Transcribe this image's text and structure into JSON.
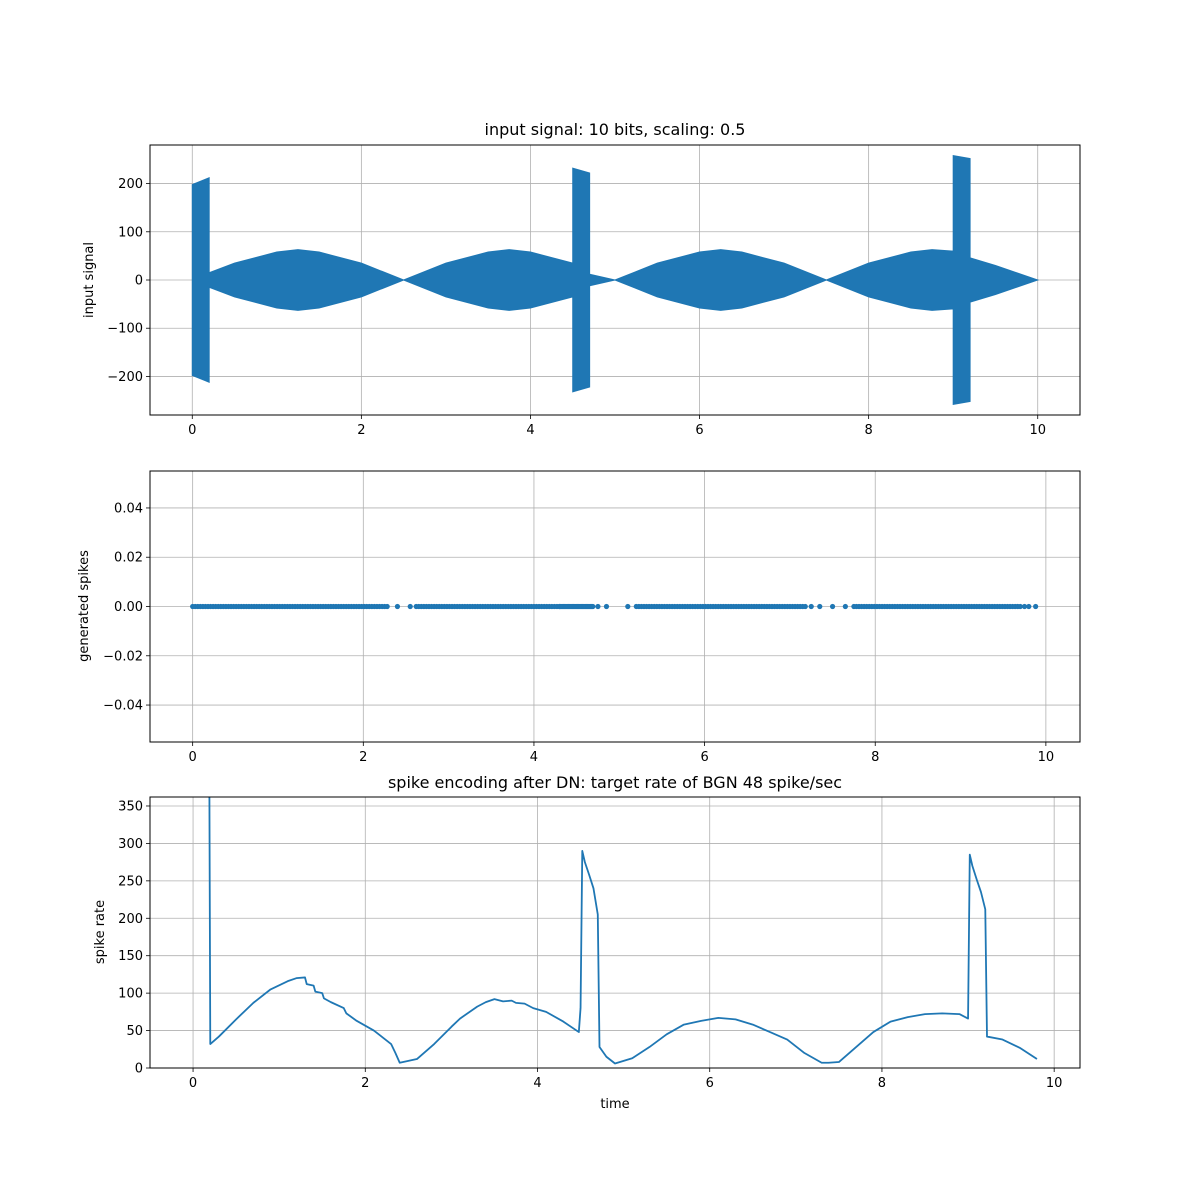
{
  "colors": {
    "series": "#1f77b4",
    "grid": "#b0b0b0",
    "axes": "#000000"
  },
  "chart_data": [
    {
      "type": "area",
      "title": "input signal: 10 bits, scaling: 0.5",
      "xlabel": "",
      "ylabel": "input signal",
      "xlim": [
        -0.5,
        10.5
      ],
      "ylim": [
        -280,
        280
      ],
      "xticks": [
        0,
        2,
        4,
        6,
        8,
        10
      ],
      "xtick_labels": [
        "0",
        "2",
        "4",
        "6",
        "8",
        "10"
      ],
      "yticks": [
        -200,
        -100,
        0,
        100,
        200
      ],
      "ytick_labels": [
        "−200",
        "−100",
        "0",
        "100",
        "200"
      ],
      "grid": true,
      "envelope": {
        "x": [
          0,
          0.2,
          0.2,
          0.5,
          1.0,
          1.25,
          1.5,
          2.0,
          2.5,
          3.0,
          3.5,
          3.75,
          4.0,
          4.5,
          4.5,
          4.7,
          4.7,
          5.0,
          5.5,
          6.0,
          6.25,
          6.5,
          7.0,
          7.5,
          8.0,
          8.5,
          8.75,
          9.0,
          9.0,
          9.2,
          9.2,
          9.5,
          10.0
        ],
        "upper": [
          198,
          212,
          15,
          35,
          58,
          63,
          58,
          35,
          0,
          35,
          58,
          63,
          58,
          35,
          232,
          222,
          12,
          0,
          35,
          58,
          63,
          58,
          35,
          0,
          35,
          58,
          63,
          60,
          258,
          252,
          46,
          30,
          0
        ],
        "lower": [
          -198,
          -212,
          -15,
          -35,
          -58,
          -63,
          -58,
          -35,
          0,
          -35,
          -58,
          -63,
          -58,
          -35,
          -232,
          -222,
          -12,
          0,
          -35,
          -58,
          -63,
          -58,
          -35,
          0,
          -35,
          -58,
          -63,
          -60,
          -258,
          -252,
          -46,
          -30,
          0
        ]
      }
    },
    {
      "type": "scatter",
      "title": "",
      "xlabel": "",
      "ylabel": "generated spikes",
      "xlim": [
        -0.5,
        10.4
      ],
      "ylim": [
        -0.055,
        0.055
      ],
      "xticks": [
        0,
        2,
        4,
        6,
        8,
        10
      ],
      "xtick_labels": [
        "0",
        "2",
        "4",
        "6",
        "8",
        "10"
      ],
      "yticks": [
        -0.04,
        -0.02,
        0.0,
        0.02,
        0.04
      ],
      "ytick_labels": [
        "−0.04",
        "−0.02",
        "0.00",
        "0.02",
        "0.04"
      ],
      "grid": true,
      "y_value": 0.0,
      "spike_bands": [
        {
          "from": 0.0,
          "to": 2.3,
          "step": 0.03
        },
        {
          "from": 2.62,
          "to": 4.3,
          "step": 0.03
        },
        {
          "from": 4.3,
          "to": 4.7,
          "step": 0.015
        },
        {
          "from": 5.2,
          "to": 7.2,
          "step": 0.03
        },
        {
          "from": 7.75,
          "to": 9.7,
          "step": 0.03
        }
      ],
      "spike_x_extra": [
        2.4,
        2.55,
        4.75,
        4.85,
        5.1,
        7.25,
        7.35,
        7.5,
        7.65,
        9.75,
        9.8,
        9.88
      ]
    },
    {
      "type": "line",
      "title": "spike encoding after DN: target rate of BGN 48 spike/sec",
      "xlabel": "time",
      "ylabel": "spike rate",
      "xlim": [
        -0.5,
        10.3
      ],
      "ylim": [
        0,
        362
      ],
      "xticks": [
        0,
        2,
        4,
        6,
        8,
        10
      ],
      "xtick_labels": [
        "0",
        "2",
        "4",
        "6",
        "8",
        "10"
      ],
      "yticks": [
        0,
        50,
        100,
        150,
        200,
        250,
        300,
        350
      ],
      "ytick_labels": [
        "0",
        "50",
        "100",
        "150",
        "200",
        "250",
        "300",
        "350"
      ],
      "grid": true,
      "series": [
        {
          "x": [
            0.19,
            0.2,
            0.3,
            0.5,
            0.7,
            0.9,
            1.1,
            1.2,
            1.3,
            1.32,
            1.4,
            1.42,
            1.5,
            1.52,
            1.6,
            1.75,
            1.78,
            1.9,
            2.1,
            2.3,
            2.35,
            2.4,
            2.6,
            2.8,
            3.0,
            3.1,
            3.3,
            3.4,
            3.5,
            3.6,
            3.7,
            3.75,
            3.85,
            3.95,
            4.1,
            4.3,
            4.48,
            4.5,
            4.52,
            4.55,
            4.6,
            4.65,
            4.7,
            4.72,
            4.8,
            4.9,
            5.1,
            5.3,
            5.5,
            5.7,
            5.9,
            6.1,
            6.3,
            6.5,
            6.7,
            6.9,
            7.1,
            7.3,
            7.38,
            7.5,
            7.7,
            7.9,
            8.1,
            8.3,
            8.5,
            8.7,
            8.9,
            9.0,
            9.02,
            9.05,
            9.1,
            9.15,
            9.2,
            9.22,
            9.4,
            9.6,
            9.8
          ],
          "y": [
            362,
            32,
            42,
            65,
            87,
            105,
            116,
            120,
            121,
            112,
            110,
            102,
            100,
            93,
            88,
            80,
            73,
            63,
            50,
            32,
            20,
            7,
            12,
            32,
            55,
            66,
            82,
            88,
            92,
            89,
            90,
            87,
            86,
            80,
            75,
            62,
            48,
            80,
            290,
            275,
            258,
            240,
            205,
            28,
            15,
            6,
            13,
            28,
            45,
            58,
            63,
            67,
            65,
            58,
            48,
            38,
            20,
            7,
            7,
            8,
            28,
            48,
            62,
            68,
            72,
            73,
            72,
            66,
            285,
            270,
            252,
            235,
            212,
            42,
            38,
            27,
            12
          ]
        }
      ]
    }
  ]
}
